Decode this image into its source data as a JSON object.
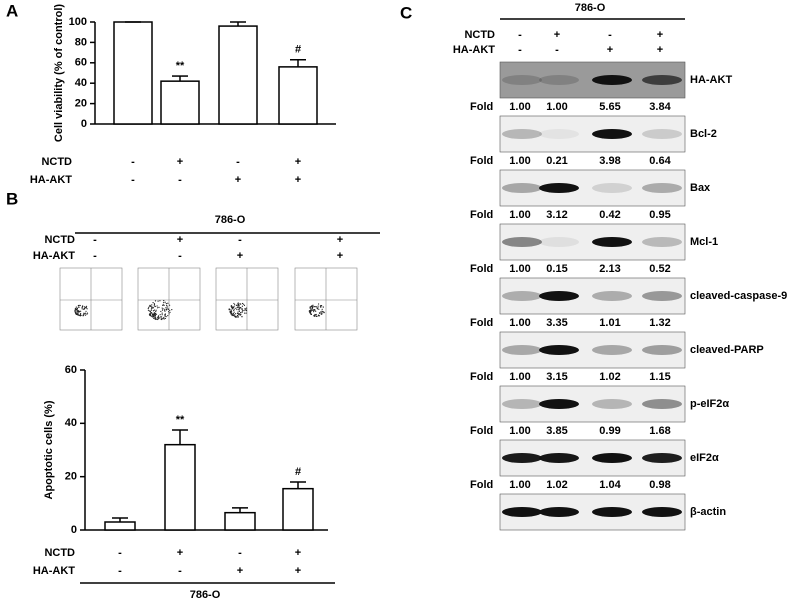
{
  "panels": [
    "A",
    "B",
    "C"
  ],
  "chart_data": [
    {
      "type": "bar",
      "ylabel": "Cell viability (% of control)",
      "categories": [
        null,
        null,
        null,
        null
      ],
      "values": [
        100,
        42,
        96,
        56
      ],
      "errors": [
        0,
        5,
        4,
        7
      ],
      "annotations": [
        {
          "category": 1,
          "text": "**"
        },
        {
          "category": 3,
          "text": "#"
        }
      ],
      "ylim": [
        0,
        100
      ],
      "yticks": [
        0,
        20,
        40,
        60,
        80,
        100
      ],
      "color": "#ffffff",
      "conditions": [
        {
          "label": "NCTD",
          "signs": [
            "-",
            "+",
            "-",
            "+"
          ]
        },
        {
          "label": "HA-AKT",
          "signs": [
            "-",
            "-",
            "+",
            "+"
          ]
        }
      ]
    },
    {
      "type": "bar",
      "ylabel": "Apoptotic cells (%)",
      "categories": [
        null,
        null,
        null,
        null
      ],
      "values": [
        3,
        32,
        6.5,
        15.5
      ],
      "errors": [
        1.5,
        5.5,
        1.8,
        2.5
      ],
      "annotations": [
        {
          "category": 1,
          "text": "**"
        },
        {
          "category": 3,
          "text": "#"
        }
      ],
      "ylim": [
        0,
        60
      ],
      "yticks": [
        0,
        20,
        40,
        60
      ],
      "color": "#ffffff",
      "conditions": [
        {
          "label": "NCTD",
          "signs": [
            "-",
            "+",
            "-",
            "+"
          ]
        },
        {
          "label": "HA-AKT",
          "signs": [
            "-",
            "-",
            "+",
            "+"
          ]
        }
      ],
      "cell_line": "786-O"
    }
  ],
  "flow": {
    "cell_line": "786-O",
    "conditions": [
      {
        "label": "NCTD",
        "signs": [
          "-",
          "+",
          "-",
          "+"
        ]
      },
      {
        "label": "HA-AKT",
        "signs": [
          "-",
          "-",
          "+",
          "+"
        ]
      }
    ]
  },
  "blots": {
    "cell_line": "786-O",
    "fold_label": "Fold",
    "conditions": [
      {
        "label": "NCTD",
        "signs": [
          "-",
          "+",
          "-",
          "+"
        ]
      },
      {
        "label": "HA-AKT",
        "signs": [
          "-",
          "-",
          "+",
          "+"
        ]
      }
    ],
    "rows": [
      {
        "label": "HA-AKT",
        "fold": [
          "1.00",
          "1.00",
          "5.65",
          "3.84"
        ]
      },
      {
        "label": "Bcl-2",
        "fold": [
          "1.00",
          "0.21",
          "3.98",
          "0.64"
        ]
      },
      {
        "label": "Bax",
        "fold": [
          "1.00",
          "3.12",
          "0.42",
          "0.95"
        ]
      },
      {
        "label": "Mcl-1",
        "fold": [
          "1.00",
          "0.15",
          "2.13",
          "0.52"
        ]
      },
      {
        "label": "cleaved-caspase-9",
        "fold": [
          "1.00",
          "3.35",
          "1.01",
          "1.32"
        ]
      },
      {
        "label": "cleaved-PARP",
        "fold": [
          "1.00",
          "3.15",
          "1.02",
          "1.15"
        ]
      },
      {
        "label": "p-eIF2α",
        "fold": [
          "1.00",
          "3.85",
          "0.99",
          "1.68"
        ]
      },
      {
        "label": "eIF2α",
        "fold": [
          "1.00",
          "1.02",
          "1.04",
          "0.98"
        ]
      },
      {
        "label": "β-actin"
      }
    ]
  }
}
